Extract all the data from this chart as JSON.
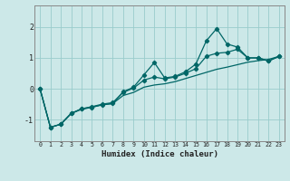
{
  "xlabel": "Humidex (Indice chaleur)",
  "ylabel": "",
  "bg_color": "#cce8e8",
  "line_color": "#006666",
  "grid_color": "#99cccc",
  "xlim": [
    -0.5,
    23.5
  ],
  "ylim": [
    -1.7,
    2.7
  ],
  "yticks": [
    -1,
    0,
    1,
    2
  ],
  "xticks": [
    0,
    1,
    2,
    3,
    4,
    5,
    6,
    7,
    8,
    9,
    10,
    11,
    12,
    13,
    14,
    15,
    16,
    17,
    18,
    19,
    20,
    21,
    22,
    23
  ],
  "x": [
    0,
    1,
    2,
    3,
    4,
    5,
    6,
    7,
    8,
    9,
    10,
    11,
    12,
    13,
    14,
    15,
    16,
    17,
    18,
    19,
    20,
    21,
    22,
    23
  ],
  "line1": [
    0.0,
    -1.25,
    -1.15,
    -0.8,
    -0.65,
    -0.6,
    -0.52,
    -0.48,
    -0.1,
    0.05,
    0.45,
    0.85,
    0.35,
    0.4,
    0.55,
    0.8,
    1.55,
    1.95,
    1.45,
    1.35,
    1.0,
    1.0,
    0.9,
    1.05
  ],
  "line2": [
    0.0,
    -1.25,
    -1.15,
    -0.8,
    -0.65,
    -0.58,
    -0.5,
    -0.45,
    -0.12,
    0.02,
    0.28,
    0.38,
    0.32,
    0.38,
    0.5,
    0.65,
    1.05,
    1.15,
    1.18,
    1.28,
    1.0,
    1.0,
    0.9,
    1.05
  ],
  "line3": [
    0.0,
    -1.25,
    -1.15,
    -0.8,
    -0.67,
    -0.6,
    -0.52,
    -0.48,
    -0.22,
    -0.12,
    0.05,
    0.12,
    0.16,
    0.23,
    0.33,
    0.43,
    0.53,
    0.63,
    0.7,
    0.78,
    0.86,
    0.91,
    0.95,
    1.05
  ]
}
